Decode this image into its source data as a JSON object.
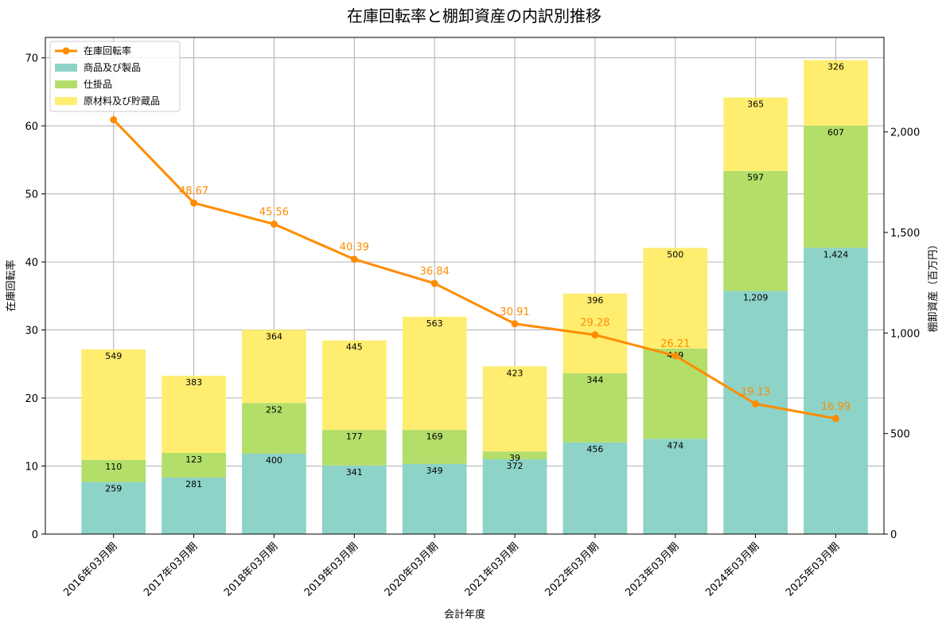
{
  "chart_data": {
    "type": "bar",
    "title": "在庫回転率と棚卸資産の内訳別推移",
    "xlabel": "会計年度",
    "ylabel_left": "在庫回転率",
    "ylabel_right": "棚卸資産（百万円）",
    "ylim_left": [
      0,
      73
    ],
    "ylim_right": [
      0,
      2470
    ],
    "yticks_left": [
      0,
      10,
      20,
      30,
      40,
      50,
      60,
      70
    ],
    "yticks_right": [
      0,
      500,
      1000,
      1500,
      2000
    ],
    "yticks_right_labels": [
      "0",
      "500",
      "1,000",
      "1,500",
      "2,000"
    ],
    "grid": true,
    "legend_position": "upper-left",
    "categories": [
      "2016年03月期",
      "2017年03月期",
      "2018年03月期",
      "2019年03月期",
      "2020年03月期",
      "2021年03月期",
      "2022年03月期",
      "2023年03月期",
      "2024年03月期",
      "2025年03月期"
    ],
    "series": [
      {
        "name": "商品及び製品",
        "kind": "bar",
        "axis": "right",
        "color": "#8dd3c7",
        "values": [
          259,
          281,
          400,
          341,
          349,
          372,
          456,
          474,
          1209,
          1424
        ],
        "labels": [
          "259",
          "281",
          "400",
          "341",
          "349",
          "372",
          "456",
          "474",
          "1,209",
          "1,424"
        ]
      },
      {
        "name": "仕掛品",
        "kind": "bar",
        "axis": "right",
        "color": "#b3de69",
        "values": [
          110,
          123,
          252,
          177,
          169,
          39,
          344,
          449,
          597,
          607
        ],
        "labels": [
          "110",
          "123",
          "252",
          "177",
          "169",
          "39",
          "344",
          "449",
          "597",
          "607"
        ]
      },
      {
        "name": "原材料及び貯蔵品",
        "kind": "bar",
        "axis": "right",
        "color": "#ffed6f",
        "values": [
          549,
          383,
          364,
          445,
          563,
          423,
          396,
          500,
          365,
          326
        ],
        "labels": [
          "549",
          "383",
          "364",
          "445",
          "563",
          "423",
          "396",
          "500",
          "365",
          "326"
        ]
      },
      {
        "name": "在庫回転率",
        "kind": "line",
        "axis": "left",
        "color": "#ff8c00",
        "values": [
          60.9,
          48.67,
          45.56,
          40.39,
          36.84,
          30.91,
          29.28,
          26.21,
          19.13,
          16.99
        ],
        "labels": [
          "",
          "48.67",
          "45.56",
          "40.39",
          "36.84",
          "30.91",
          "29.28",
          "26.21",
          "19.13",
          "16.99"
        ]
      }
    ]
  }
}
